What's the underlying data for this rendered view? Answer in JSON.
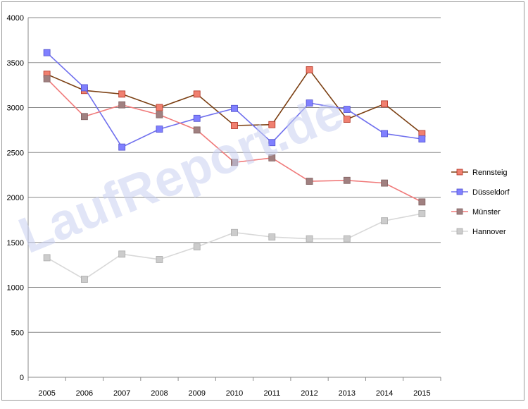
{
  "chart_data": {
    "type": "line",
    "title": "",
    "xlabel": "",
    "ylabel": "",
    "ylim": [
      0,
      4000
    ],
    "yticks": [
      0,
      500,
      1000,
      1500,
      2000,
      2500,
      3000,
      3500,
      4000
    ],
    "categories": [
      "2005",
      "2006",
      "2007",
      "2008",
      "2009",
      "2010",
      "2011",
      "2012",
      "2013",
      "2014",
      "2015"
    ],
    "grid": "horizontal",
    "legend_position": "right",
    "series": [
      {
        "name": "Rennsteig",
        "line_color": "#7b3f12",
        "marker_color": "#f08070",
        "marker_edge": "#b03020",
        "values": [
          3370,
          3190,
          3150,
          3000,
          3150,
          2800,
          2810,
          3420,
          2870,
          3040,
          2710
        ]
      },
      {
        "name": "Düsseldorf",
        "line_color": "#7070ee",
        "marker_color": "#8080ff",
        "marker_edge": "#5050cc",
        "values": [
          3610,
          3220,
          2560,
          2760,
          2880,
          2990,
          2610,
          3050,
          2980,
          2710,
          2650
        ]
      },
      {
        "name": "Münster",
        "line_color": "#f07a7a",
        "marker_color": "#a08080",
        "marker_edge": "#806060",
        "values": [
          3320,
          2900,
          3030,
          2920,
          2750,
          2390,
          2440,
          2180,
          2190,
          2160,
          1950
        ]
      },
      {
        "name": "Hannover",
        "line_color": "#d8d8d8",
        "marker_color": "#cccccc",
        "marker_edge": "#aaaaaa",
        "values": [
          1330,
          1090,
          1370,
          1310,
          1450,
          1610,
          1560,
          1540,
          1540,
          1740,
          1820
        ]
      }
    ]
  },
  "watermark": "LaufReport.de"
}
